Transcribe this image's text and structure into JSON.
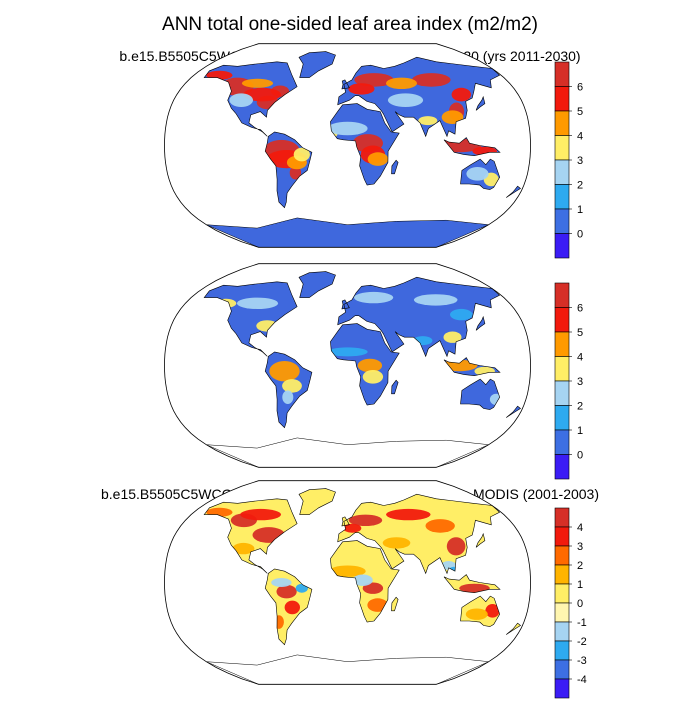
{
  "title": "ANN total one-sided leaf area index (m2/m2)",
  "panels": [
    {
      "id": "model",
      "title": "b.e15.B5505C5WCCML45BGCR.f09_g16.control.EM1-20 (yrs 2011-2030)",
      "colorbar": {
        "labels": [
          "6",
          "5",
          "4",
          "3",
          "2",
          "1",
          "0"
        ],
        "colors": [
          "#d62f27",
          "#f21a0d",
          "#ff9a00",
          "#ffee66",
          "#a6d4f2",
          "#2eaaf0",
          "#3d6fe3",
          "#3b1cf5"
        ]
      },
      "map": {
        "background": "#3f68dd",
        "lowland_color": "#3f68dd",
        "warm_colors": [
          "#d62f27",
          "#f21a0d",
          "#ff9a00",
          "#ffee66",
          "#a6d4f2",
          "#2eaaf0"
        ],
        "antarctica_color": "#3f68dd"
      }
    },
    {
      "id": "obs",
      "title": "MODIS (2001-2003)",
      "colorbar": {
        "labels": [
          "6",
          "5",
          "4",
          "3",
          "2",
          "1",
          "0"
        ],
        "colors": [
          "#d62f27",
          "#f21a0d",
          "#ff9a00",
          "#ffee66",
          "#a6d4f2",
          "#2eaaf0",
          "#3d6fe3",
          "#3b1cf5"
        ]
      },
      "map": {
        "background": "#3f68dd",
        "lowland_color": "#3f68dd",
        "warm_colors": [
          "#ff9a00",
          "#ffee66",
          "#a6d4f2",
          "#2eaaf0"
        ],
        "antarctica_color": "#ffffff"
      }
    },
    {
      "id": "diff",
      "title": "b.e15.B5505C5WCCML45BGCR.f09_g16.control.EM1-20 - MODIS (2001-2003)",
      "colorbar": {
        "labels": [
          "4",
          "3",
          "2",
          "1",
          "0",
          "-1",
          "-2",
          "-3",
          "-4"
        ],
        "colors": [
          "#d62f27",
          "#f21a0d",
          "#ff6a00",
          "#ffb400",
          "#ffee66",
          "#fff6b0",
          "#a6d4f2",
          "#2eaaf0",
          "#3d6fe3",
          "#3b1cf5"
        ]
      },
      "map": {
        "background": "#fff6b0",
        "lowland_color": "#ffee66",
        "warm_colors": [
          "#d62f27",
          "#f21a0d",
          "#ff6a00",
          "#ffb400",
          "#a6d4f2",
          "#2eaaf0"
        ],
        "antarctica_color": "#ffffff"
      }
    }
  ]
}
